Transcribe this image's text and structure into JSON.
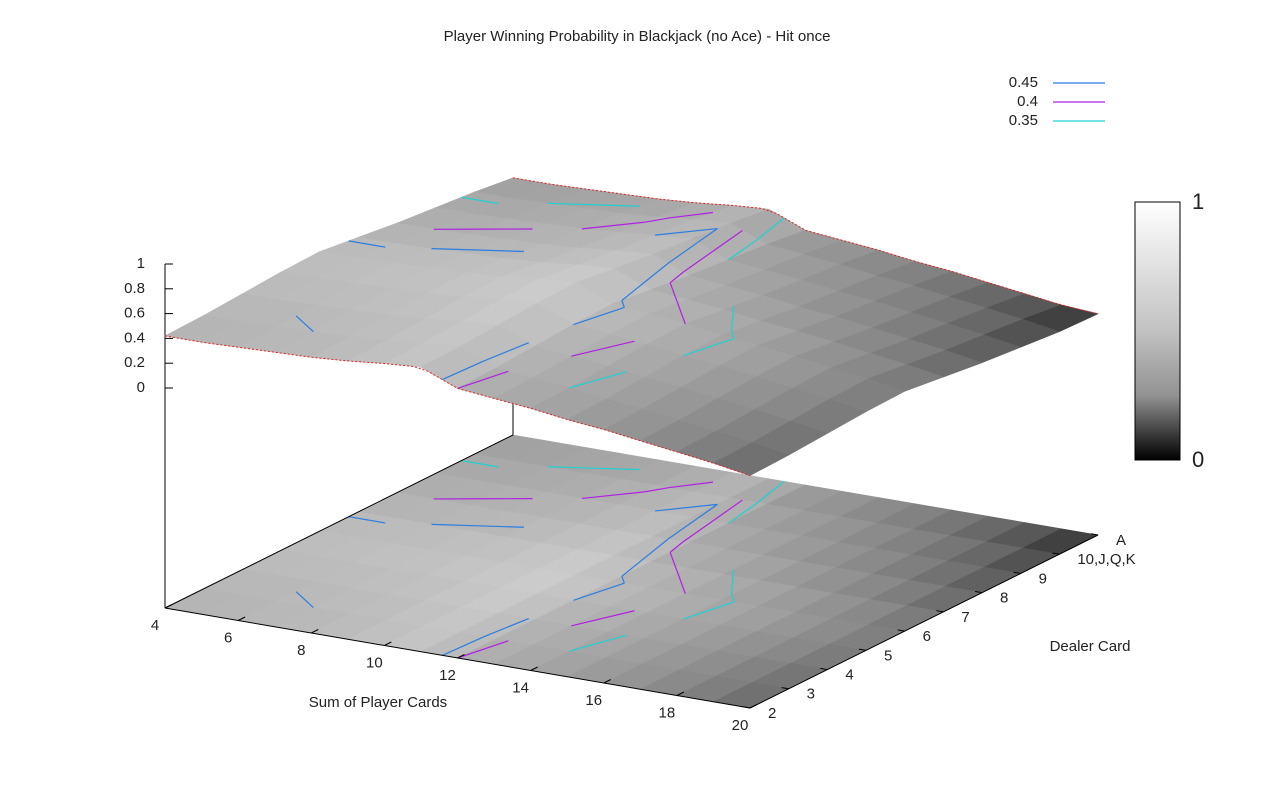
{
  "chart_data": {
    "type": "surface3d",
    "title": "Player Winning Probability in Blackjack (no Ace) - Hit once",
    "xlabel": "Sum of Player Cards",
    "ylabel": "Dealer Card",
    "x": [
      4,
      5,
      6,
      7,
      8,
      9,
      10,
      11,
      12,
      13,
      14,
      15,
      16,
      17,
      18,
      19,
      20
    ],
    "xlim": [
      4,
      20
    ],
    "xticks": [
      4,
      6,
      8,
      10,
      12,
      14,
      16,
      18,
      20
    ],
    "categories": [
      "2",
      "3",
      "4",
      "5",
      "6",
      "7",
      "8",
      "9",
      "10,J,Q,K",
      "A"
    ],
    "zlim": [
      0,
      1
    ],
    "zticks": [
      0,
      0.2,
      0.4,
      0.6,
      0.8,
      1
    ],
    "cblim": [
      0,
      1
    ],
    "cbticks": [
      0,
      1
    ],
    "values": [
      [
        0.42,
        0.43,
        0.45,
        0.47,
        0.48,
        0.44,
        0.4,
        0.37,
        0.34,
        0.3
      ],
      [
        0.42,
        0.43,
        0.45,
        0.47,
        0.48,
        0.44,
        0.4,
        0.37,
        0.34,
        0.3
      ],
      [
        0.43,
        0.44,
        0.46,
        0.48,
        0.49,
        0.45,
        0.41,
        0.38,
        0.35,
        0.31
      ],
      [
        0.44,
        0.45,
        0.47,
        0.49,
        0.5,
        0.46,
        0.42,
        0.39,
        0.36,
        0.32
      ],
      [
        0.45,
        0.46,
        0.48,
        0.5,
        0.51,
        0.47,
        0.43,
        0.4,
        0.37,
        0.33
      ],
      [
        0.47,
        0.48,
        0.5,
        0.52,
        0.53,
        0.49,
        0.45,
        0.42,
        0.39,
        0.35
      ],
      [
        0.5,
        0.51,
        0.53,
        0.55,
        0.56,
        0.52,
        0.48,
        0.45,
        0.42,
        0.38
      ],
      [
        0.52,
        0.53,
        0.55,
        0.57,
        0.58,
        0.54,
        0.5,
        0.47,
        0.44,
        0.4
      ],
      [
        0.4,
        0.41,
        0.43,
        0.45,
        0.46,
        0.42,
        0.38,
        0.35,
        0.32,
        0.28
      ],
      [
        0.37,
        0.38,
        0.4,
        0.42,
        0.43,
        0.39,
        0.35,
        0.32,
        0.29,
        0.25
      ],
      [
        0.34,
        0.35,
        0.37,
        0.39,
        0.4,
        0.36,
        0.32,
        0.29,
        0.26,
        0.22
      ],
      [
        0.3,
        0.31,
        0.33,
        0.35,
        0.36,
        0.32,
        0.28,
        0.25,
        0.22,
        0.18
      ],
      [
        0.27,
        0.28,
        0.3,
        0.32,
        0.33,
        0.29,
        0.25,
        0.22,
        0.19,
        0.15
      ],
      [
        0.23,
        0.24,
        0.26,
        0.28,
        0.29,
        0.25,
        0.21,
        0.18,
        0.15,
        0.11
      ],
      [
        0.19,
        0.2,
        0.22,
        0.24,
        0.25,
        0.21,
        0.17,
        0.14,
        0.11,
        0.07
      ],
      [
        0.15,
        0.16,
        0.18,
        0.2,
        0.21,
        0.17,
        0.13,
        0.1,
        0.07,
        0.03
      ],
      [
        0.1,
        0.11,
        0.13,
        0.15,
        0.16,
        0.12,
        0.08,
        0.05,
        0.02,
        0.01
      ]
    ],
    "contours": [
      {
        "level": 0.45,
        "color": "#2a7de1"
      },
      {
        "level": 0.4,
        "color": "#b020e0"
      },
      {
        "level": 0.35,
        "color": "#20d0d0"
      }
    ]
  }
}
